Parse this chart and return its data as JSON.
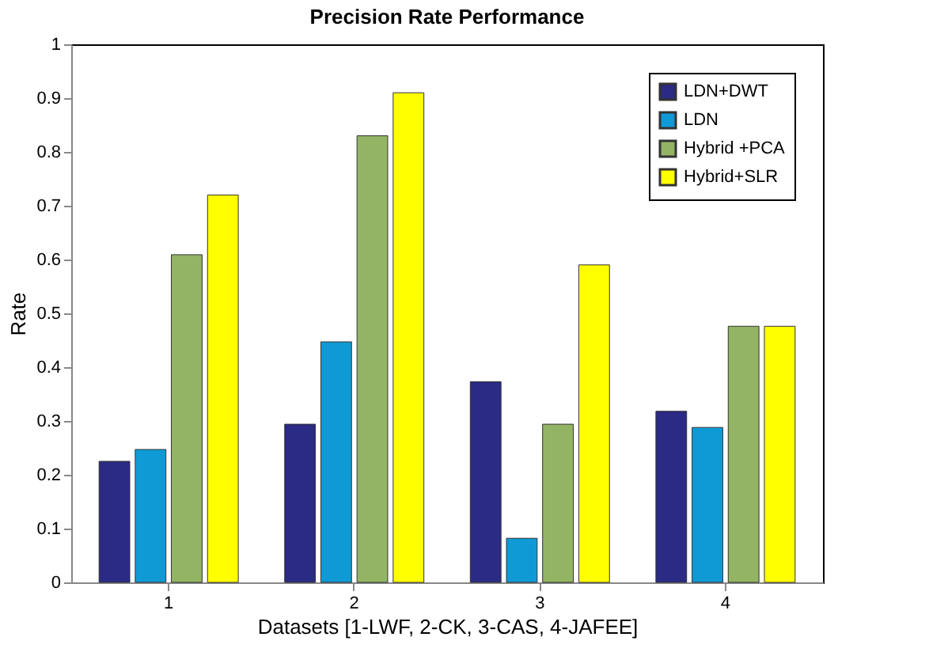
{
  "chart_data": {
    "type": "bar",
    "title": "Precision Rate Performance",
    "xlabel": "Datasets [1-LWF, 2-CK, 3-CAS, 4-JAFEE]",
    "ylabel": "Rate",
    "categories": [
      "1",
      "2",
      "3",
      "4"
    ],
    "series": [
      {
        "name": "LDN+DWT",
        "color": "#2b2a84",
        "values": [
          0.225,
          0.294,
          0.373,
          0.318
        ]
      },
      {
        "name": "LDN",
        "color": "#0f9ad6",
        "values": [
          0.247,
          0.447,
          0.082,
          0.288
        ]
      },
      {
        "name": "Hybrid +PCA",
        "color": "#93b464",
        "values": [
          0.609,
          0.83,
          0.294,
          0.476
        ]
      },
      {
        "name": "Hybrid+SLR",
        "color": "#ffff00",
        "values": [
          0.72,
          0.91,
          0.59,
          0.476
        ]
      }
    ],
    "ylim": [
      0,
      1
    ],
    "yticks": [
      0,
      0.1,
      0.2,
      0.3,
      0.4,
      0.5,
      0.6,
      0.7,
      0.8,
      0.9,
      1
    ],
    "grid": false,
    "legend": "top right"
  }
}
